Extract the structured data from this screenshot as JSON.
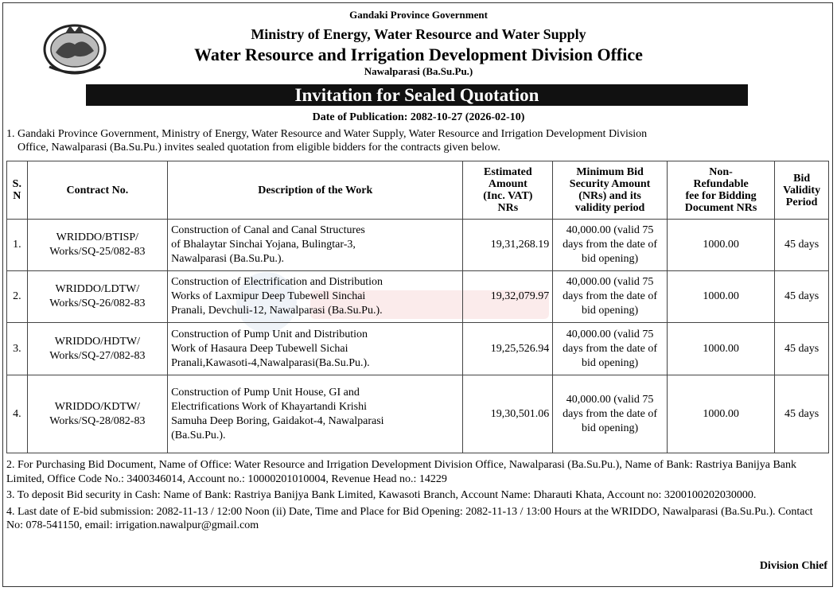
{
  "header": {
    "line1": "Gandaki Province Government",
    "line2": "Ministry of Energy, Water Resource and Water Supply",
    "line3": "Water Resource and Irrigation Development Division Office",
    "line4": "Nawalparasi (Ba.Su.Pu.)"
  },
  "banner": "Invitation for Sealed Quotation",
  "publication_date": "Date of Publication: 2082-10-27 (2026-02-10)",
  "intro": {
    "line1": "1. Gandaki Province Government, Ministry of Energy, Water Resource and Water Supply, Water Resource and Irrigation Development Division",
    "line2": "Office, Nawalparasi (Ba.Su.Pu.) invites sealed quotation from eligible bidders for the contracts given below."
  },
  "table": {
    "headers": {
      "sn": "S.\nN",
      "contract": "Contract No.",
      "desc": "Description of the Work",
      "amount": "Estimated\nAmount\n(Inc. VAT)\nNRs",
      "security": "Minimum Bid\nSecurity Amount\n(NRs) and its\nvalidity period",
      "fee": "Non-\nRefundable\nfee for Bidding\nDocument NRs",
      "validity": "Bid\nValidity\nPeriod"
    },
    "rows": [
      {
        "sn": "1.",
        "contract": "WRIDDO/BTISP/\nWorks/SQ-25/082-83",
        "desc": "Construction of Canal and Canal Structures\nof Bhalaytar Sinchai Yojana, Bulingtar-3,\nNawalparasi (Ba.Su.Pu.).",
        "amount": "19,31,268.19",
        "security": "40,000.00 (valid 75\ndays from the date of\nbid opening)",
        "fee": "1000.00",
        "validity": "45 days"
      },
      {
        "sn": "2.",
        "contract": "WRIDDO/LDTW/\nWorks/SQ-26/082-83",
        "desc": "Construction of Electrification and Distribution\nWorks of Laxmipur Deep Tubewell Sinchai\nPranali, Devchuli-12, Nawalparasi (Ba.Su.Pu.).",
        "amount": "19,32,079.97",
        "security": "40,000.00 (valid 75\ndays from the date of\nbid opening)",
        "fee": "1000.00",
        "validity": "45 days"
      },
      {
        "sn": "3.",
        "contract": "WRIDDO/HDTW/\nWorks/SQ-27/082-83",
        "desc": "Construction of Pump Unit and Distribution\nWork of Hasaura Deep Tubewell Sichai\nPranali,Kawasoti-4,Nawalparasi(Ba.Su.Pu.).",
        "amount": "19,25,526.94",
        "security": "40,000.00 (valid 75\ndays from the date of\nbid opening)",
        "fee": "1000.00",
        "validity": "45 days"
      },
      {
        "sn": "4.",
        "contract": "WRIDDO/KDTW/\nWorks/SQ-28/082-83",
        "desc": "Construction of Pump Unit House, GI  and\nElectrifications Work of Khayartandi Krishi\nSamuha Deep Boring, Gaidakot-4, Nawalparasi\n(Ba.Su.Pu.).",
        "amount": "19,30,501.06",
        "security": "40,000.00 (valid 75\ndays from the date of\nbid opening)",
        "fee": "1000.00",
        "validity": "45 days"
      }
    ]
  },
  "notes": {
    "n2": "2. For Purchasing Bid Document, Name of Office: Water Resource and Irrigation Development Division Office, Nawalparasi (Ba.Su.Pu.), Name of Bank: Rastriya Banijya Bank Limited, Office Code No.: 3400346014, Account no.: 10000201010004, Revenue Head no.: 14229",
    "n3": "3. To deposit Bid security in Cash: Name of Bank: Rastriya Banijya Bank Limited, Kawasoti Branch, Account Name: Dharauti Khata, Account no: 3200100202030000.",
    "n4": "4. Last date of E-bid submission: 2082-11-13 / 12:00 Noon (ii) Date, Time and Place for Bid Opening: 2082-11-13 / 13:00 Hours at the WRIDDO, Nawalparasi (Ba.Su.Pu.). Contact No: 078-541150, email: irrigation.nawalpur@gmail.com"
  },
  "signoff": "Division Chief"
}
